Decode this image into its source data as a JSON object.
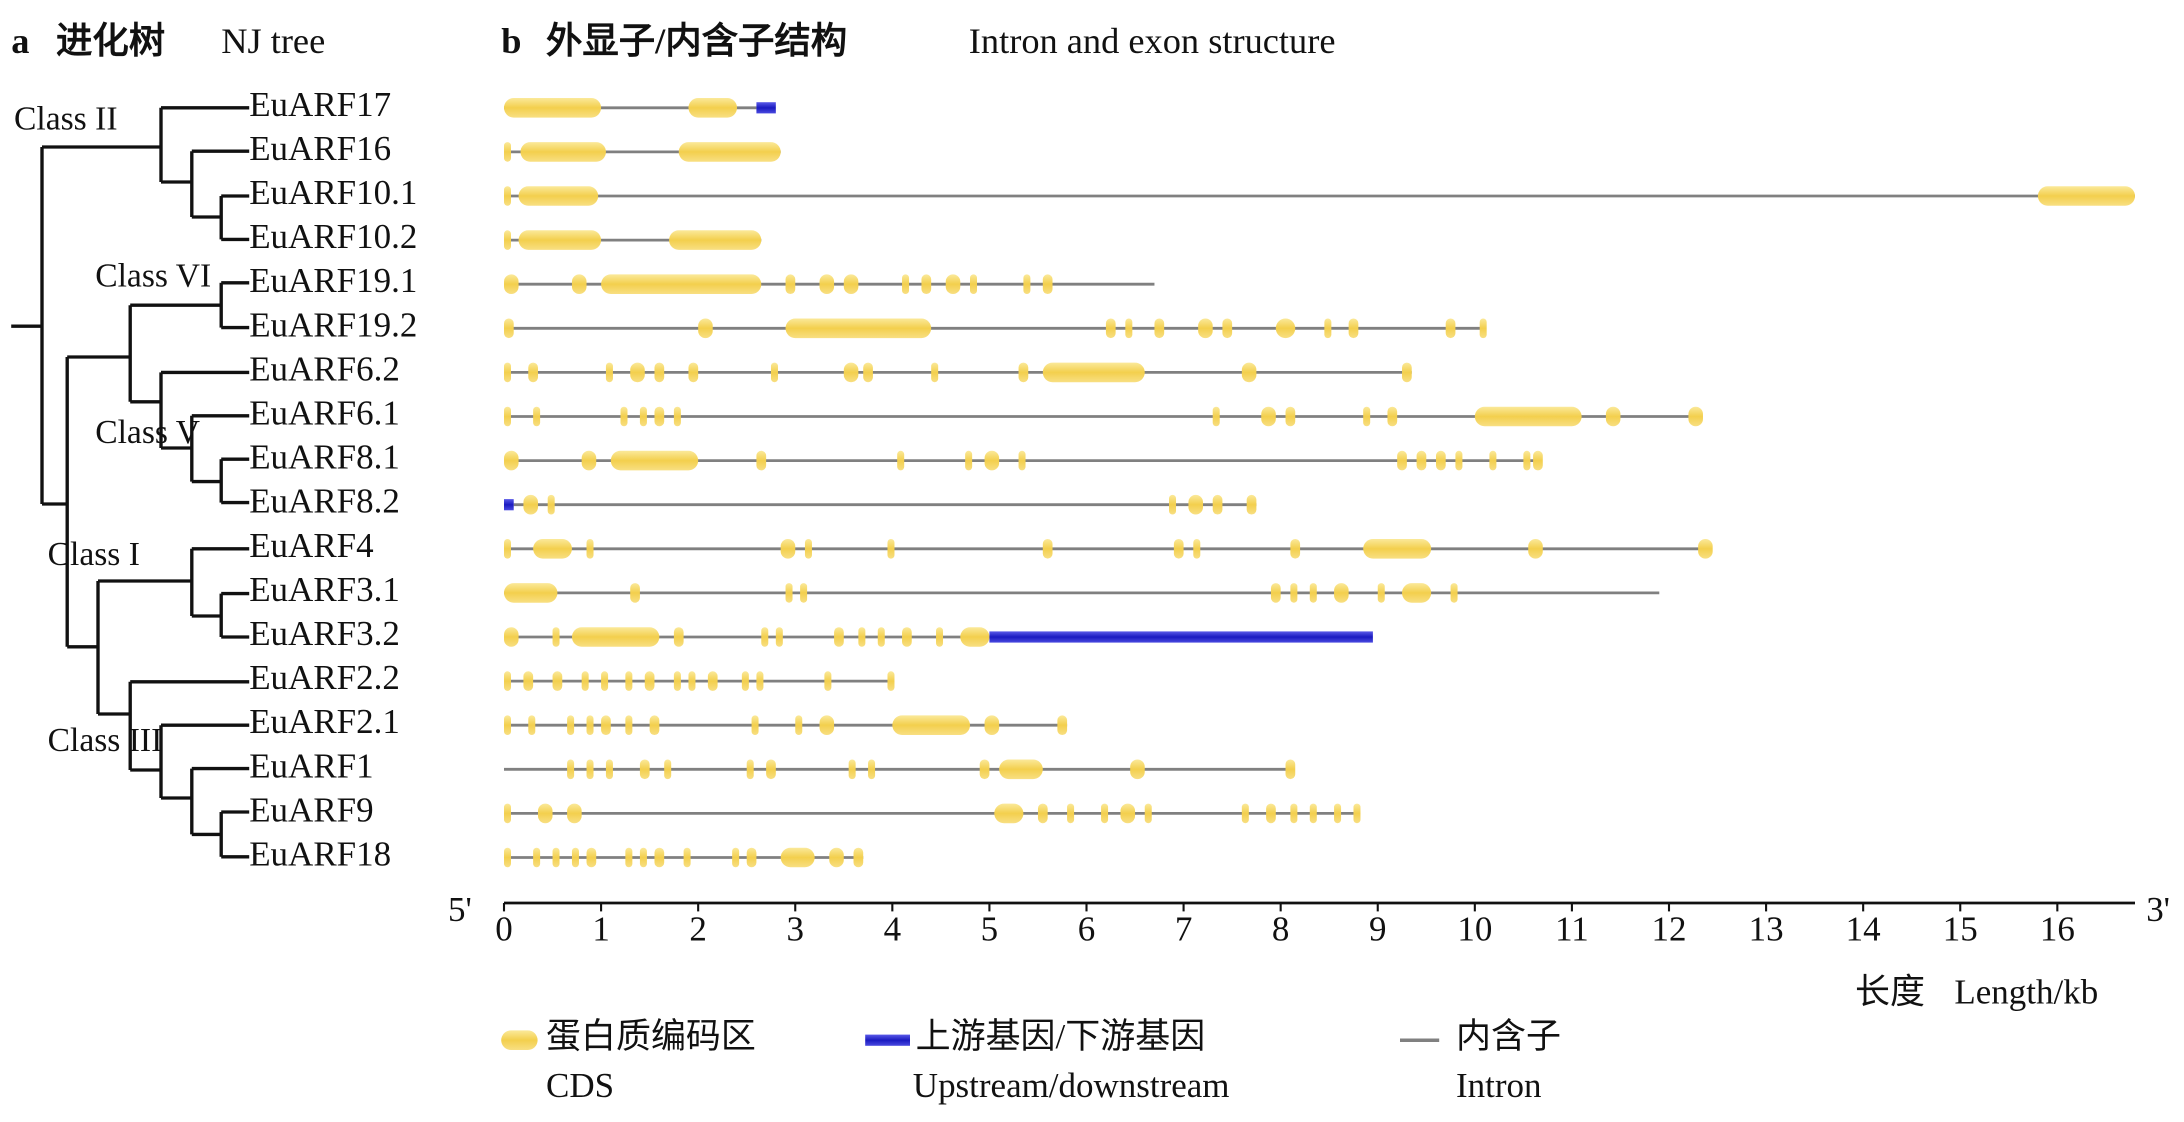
{
  "panel_a": {
    "label": "a",
    "title_zh": "进化树",
    "title_en": "NJ tree",
    "classes": [
      "Class II",
      "Class VI",
      "Class V",
      "Class I",
      "Class III"
    ]
  },
  "panel_b": {
    "label": "b",
    "title_zh": "外显子/内含子结构",
    "title_en": "Intron and exon structure",
    "axis": {
      "start_label": "5'",
      "end_label": "3'",
      "label_zh": "长度",
      "label_en": "Length/kb",
      "xlim": [
        0,
        16.8
      ],
      "xticks": [
        0,
        1,
        2,
        3,
        4,
        5,
        6,
        7,
        8,
        9,
        10,
        11,
        12,
        13,
        14,
        15,
        16
      ]
    },
    "genes": [
      {
        "name": "EuARF17",
        "intron": [
          0,
          2.6
        ],
        "cds": [
          [
            0,
            1.0
          ],
          [
            1.9,
            2.4
          ]
        ],
        "flank": [
          [
            2.6,
            2.8
          ]
        ]
      },
      {
        "name": "EuARF16",
        "intron": [
          0,
          2.85
        ],
        "cds": [
          [
            0,
            0.05
          ],
          [
            0.17,
            1.05
          ],
          [
            1.8,
            2.85
          ]
        ],
        "flank": []
      },
      {
        "name": "EuARF10.1",
        "intron": [
          0,
          16.8
        ],
        "cds": [
          [
            0,
            0.05
          ],
          [
            0.15,
            0.97
          ],
          [
            15.8,
            16.8
          ]
        ],
        "flank": []
      },
      {
        "name": "EuARF10.2",
        "intron": [
          0,
          2.65
        ],
        "cds": [
          [
            0,
            0.05
          ],
          [
            0.15,
            1.0
          ],
          [
            1.7,
            2.65
          ]
        ],
        "flank": []
      },
      {
        "name": "EuARF19.1",
        "intron": [
          0,
          6.7
        ],
        "cds": [
          [
            0,
            0.15
          ],
          [
            0.7,
            0.85
          ],
          [
            1.0,
            2.65
          ],
          [
            2.9,
            3.0
          ],
          [
            3.25,
            3.4
          ],
          [
            3.5,
            3.65
          ],
          [
            4.1,
            4.15
          ],
          [
            4.3,
            4.4
          ],
          [
            4.55,
            4.7
          ],
          [
            4.8,
            4.85
          ],
          [
            5.35,
            5.4
          ],
          [
            5.55,
            5.65
          ]
        ],
        "flank": []
      },
      {
        "name": "EuARF19.2",
        "intron": [
          0,
          10.1
        ],
        "cds": [
          [
            0,
            0.1
          ],
          [
            2.0,
            2.15
          ],
          [
            2.9,
            4.4
          ],
          [
            6.2,
            6.3
          ],
          [
            6.4,
            6.45
          ],
          [
            6.7,
            6.8
          ],
          [
            7.15,
            7.3
          ],
          [
            7.4,
            7.5
          ],
          [
            7.95,
            8.15
          ],
          [
            8.45,
            8.5
          ],
          [
            8.7,
            8.8
          ],
          [
            9.7,
            9.8
          ],
          [
            10.05,
            10.1
          ]
        ],
        "flank": []
      },
      {
        "name": "EuARF6.2",
        "intron": [
          0,
          9.35
        ],
        "cds": [
          [
            0,
            0.03
          ],
          [
            0.25,
            0.35
          ],
          [
            1.05,
            1.1
          ],
          [
            1.3,
            1.45
          ],
          [
            1.55,
            1.65
          ],
          [
            1.9,
            2.0
          ],
          [
            2.75,
            2.8
          ],
          [
            3.5,
            3.65
          ],
          [
            3.7,
            3.8
          ],
          [
            4.4,
            4.45
          ],
          [
            5.3,
            5.4
          ],
          [
            5.55,
            6.6
          ],
          [
            7.6,
            7.75
          ],
          [
            9.25,
            9.35
          ]
        ],
        "flank": []
      },
      {
        "name": "EuARF6.1",
        "intron": [
          0,
          12.3
        ],
        "cds": [
          [
            0,
            0.02
          ],
          [
            0.3,
            0.35
          ],
          [
            1.2,
            1.25
          ],
          [
            1.4,
            1.45
          ],
          [
            1.55,
            1.65
          ],
          [
            1.75,
            1.8
          ],
          [
            7.3,
            7.35
          ],
          [
            7.8,
            7.95
          ],
          [
            8.05,
            8.15
          ],
          [
            8.85,
            8.9
          ],
          [
            9.1,
            9.2
          ],
          [
            10.0,
            11.1
          ],
          [
            11.35,
            11.5
          ],
          [
            12.2,
            12.35
          ]
        ],
        "flank": []
      },
      {
        "name": "EuARF8.1",
        "intron": [
          0,
          10.65
        ],
        "cds": [
          [
            0,
            0.15
          ],
          [
            0.8,
            0.95
          ],
          [
            1.1,
            2.0
          ],
          [
            2.6,
            2.7
          ],
          [
            4.05,
            4.1
          ],
          [
            4.75,
            4.8
          ],
          [
            4.95,
            5.1
          ],
          [
            5.3,
            5.35
          ],
          [
            9.2,
            9.3
          ],
          [
            9.4,
            9.5
          ],
          [
            9.6,
            9.7
          ],
          [
            9.8,
            9.85
          ],
          [
            10.15,
            10.2
          ],
          [
            10.5,
            10.55
          ],
          [
            10.6,
            10.7
          ]
        ],
        "flank": []
      },
      {
        "name": "EuARF8.2",
        "intron": [
          0.1,
          7.75
        ],
        "cds": [
          [
            0.2,
            0.35
          ],
          [
            0.45,
            0.5
          ],
          [
            6.85,
            6.9
          ],
          [
            7.05,
            7.2
          ],
          [
            7.3,
            7.4
          ],
          [
            7.65,
            7.75
          ]
        ],
        "flank": [
          [
            0,
            0.1
          ]
        ]
      },
      {
        "name": "EuARF4",
        "intron": [
          0,
          12.4
        ],
        "cds": [
          [
            0,
            0.02
          ],
          [
            0.3,
            0.7
          ],
          [
            0.85,
            0.9
          ],
          [
            2.85,
            3.0
          ],
          [
            3.1,
            3.15
          ],
          [
            3.95,
            4.0
          ],
          [
            5.55,
            5.65
          ],
          [
            6.9,
            7.0
          ],
          [
            7.1,
            7.15
          ],
          [
            8.1,
            8.2
          ],
          [
            8.85,
            9.55
          ],
          [
            10.55,
            10.7
          ],
          [
            12.3,
            12.45
          ]
        ],
        "flank": []
      },
      {
        "name": "EuARF3.1",
        "intron": [
          0,
          11.9
        ],
        "cds": [
          [
            0,
            0.55
          ],
          [
            1.3,
            1.4
          ],
          [
            2.9,
            2.95
          ],
          [
            3.05,
            3.1
          ],
          [
            7.9,
            8.0
          ],
          [
            8.1,
            8.15
          ],
          [
            8.3,
            8.35
          ],
          [
            8.55,
            8.7
          ],
          [
            9.0,
            9.05
          ],
          [
            9.25,
            9.55
          ],
          [
            9.75,
            9.8
          ]
        ],
        "flank": []
      },
      {
        "name": "EuARF3.2",
        "intron": [
          0,
          5.0
        ],
        "cds": [
          [
            0,
            0.15
          ],
          [
            0.5,
            0.55
          ],
          [
            0.7,
            1.6
          ],
          [
            1.75,
            1.85
          ],
          [
            2.65,
            2.7
          ],
          [
            2.8,
            2.85
          ],
          [
            3.4,
            3.5
          ],
          [
            3.65,
            3.7
          ],
          [
            3.85,
            3.9
          ],
          [
            4.1,
            4.2
          ],
          [
            4.45,
            4.5
          ],
          [
            4.7,
            5.0
          ]
        ],
        "flank": [
          [
            5.0,
            8.95
          ]
        ]
      },
      {
        "name": "EuARF2.2",
        "intron": [
          0,
          4.0
        ],
        "cds": [
          [
            0,
            0.03
          ],
          [
            0.2,
            0.3
          ],
          [
            0.5,
            0.6
          ],
          [
            0.8,
            0.85
          ],
          [
            1.0,
            1.05
          ],
          [
            1.25,
            1.3
          ],
          [
            1.45,
            1.55
          ],
          [
            1.75,
            1.8
          ],
          [
            1.9,
            1.95
          ],
          [
            2.1,
            2.2
          ],
          [
            2.45,
            2.5
          ],
          [
            2.6,
            2.65
          ],
          [
            3.3,
            3.35
          ],
          [
            3.95,
            4.0
          ]
        ],
        "flank": []
      },
      {
        "name": "EuARF2.1",
        "intron": [
          0,
          5.8
        ],
        "cds": [
          [
            0,
            0.03
          ],
          [
            0.25,
            0.3
          ],
          [
            0.65,
            0.7
          ],
          [
            0.85,
            0.9
          ],
          [
            1.0,
            1.1
          ],
          [
            1.25,
            1.3
          ],
          [
            1.5,
            1.6
          ],
          [
            2.55,
            2.6
          ],
          [
            3.0,
            3.05
          ],
          [
            3.25,
            3.4
          ],
          [
            4.0,
            4.8
          ],
          [
            4.95,
            5.1
          ],
          [
            5.7,
            5.8
          ]
        ],
        "flank": []
      },
      {
        "name": "EuARF1",
        "intron": [
          0,
          8.1
        ],
        "cds": [
          [
            0.65,
            0.7
          ],
          [
            0.85,
            0.9
          ],
          [
            1.05,
            1.1
          ],
          [
            1.4,
            1.5
          ],
          [
            1.65,
            1.7
          ],
          [
            2.5,
            2.55
          ],
          [
            2.7,
            2.8
          ],
          [
            3.55,
            3.6
          ],
          [
            3.75,
            3.8
          ],
          [
            4.9,
            5.0
          ],
          [
            5.1,
            5.55
          ],
          [
            6.45,
            6.6
          ],
          [
            8.05,
            8.15
          ]
        ],
        "flank": []
      },
      {
        "name": "EuARF9",
        "intron": [
          0,
          8.75
        ],
        "cds": [
          [
            0,
            0.02
          ],
          [
            0.35,
            0.5
          ],
          [
            0.65,
            0.8
          ],
          [
            5.05,
            5.35
          ],
          [
            5.5,
            5.6
          ],
          [
            5.8,
            5.85
          ],
          [
            6.15,
            6.2
          ],
          [
            6.35,
            6.5
          ],
          [
            6.6,
            6.65
          ],
          [
            7.6,
            7.65
          ],
          [
            7.85,
            7.95
          ],
          [
            8.1,
            8.15
          ],
          [
            8.3,
            8.35
          ],
          [
            8.55,
            8.6
          ],
          [
            8.75,
            8.8
          ]
        ],
        "flank": []
      },
      {
        "name": "EuARF18",
        "intron": [
          0,
          3.7
        ],
        "cds": [
          [
            0,
            0.02
          ],
          [
            0.3,
            0.35
          ],
          [
            0.5,
            0.55
          ],
          [
            0.7,
            0.75
          ],
          [
            0.85,
            0.95
          ],
          [
            1.25,
            1.3
          ],
          [
            1.4,
            1.45
          ],
          [
            1.55,
            1.65
          ],
          [
            1.85,
            1.9
          ],
          [
            2.35,
            2.4
          ],
          [
            2.5,
            2.6
          ],
          [
            2.85,
            3.2
          ],
          [
            3.35,
            3.5
          ],
          [
            3.6,
            3.7
          ]
        ],
        "flank": []
      }
    ],
    "legend": [
      {
        "label_zh": "蛋白质编码区",
        "label_en": "CDS"
      },
      {
        "label_zh": "上游基因/下游基因",
        "label_en": "Upstream/downstream"
      },
      {
        "label_zh": "内含子",
        "label_en": "Intron"
      }
    ]
  }
}
